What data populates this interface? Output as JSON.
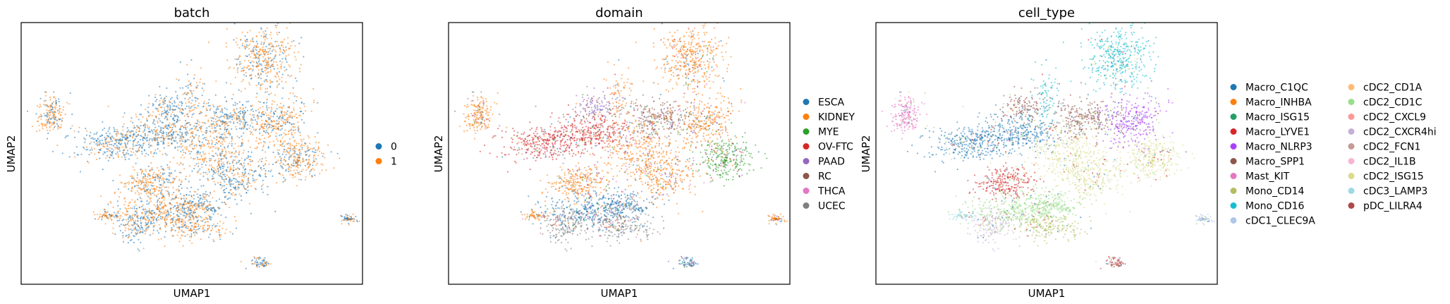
{
  "chart_data": [
    {
      "type": "scatter",
      "title": "batch",
      "xlabel": "UMAP1",
      "ylabel": "UMAP2",
      "grid": false,
      "legend": "right",
      "series": [
        {
          "name": "0",
          "color": "#1f77b4"
        },
        {
          "name": "1",
          "color": "#ff7f0e"
        }
      ]
    },
    {
      "type": "scatter",
      "title": "domain",
      "xlabel": "UMAP1",
      "ylabel": "UMAP2",
      "grid": false,
      "legend": "right",
      "series": [
        {
          "name": "ESCA",
          "color": "#1f77b4"
        },
        {
          "name": "KIDNEY",
          "color": "#ff7f0e"
        },
        {
          "name": "MYE",
          "color": "#2ca02c"
        },
        {
          "name": "OV-FTC",
          "color": "#d62728"
        },
        {
          "name": "PAAD",
          "color": "#9467bd"
        },
        {
          "name": "RC",
          "color": "#8c564b"
        },
        {
          "name": "THCA",
          "color": "#e377c2"
        },
        {
          "name": "UCEC",
          "color": "#7f7f7f"
        }
      ]
    },
    {
      "type": "scatter",
      "title": "cell_type",
      "xlabel": "UMAP1",
      "ylabel": "UMAP2",
      "grid": false,
      "legend": "right",
      "series": [
        {
          "name": "Macro_C1QC",
          "color": "#1f77b4"
        },
        {
          "name": "Macro_INHBA",
          "color": "#ff7f0e"
        },
        {
          "name": "Macro_ISG15",
          "color": "#279e68"
        },
        {
          "name": "Macro_LYVE1",
          "color": "#d62728"
        },
        {
          "name": "Macro_NLRP3",
          "color": "#aa40fc"
        },
        {
          "name": "Macro_SPP1",
          "color": "#8c564b"
        },
        {
          "name": "Mast_KIT",
          "color": "#e377c2"
        },
        {
          "name": "Mono_CD14",
          "color": "#b5bd61"
        },
        {
          "name": "Mono_CD16",
          "color": "#17becf"
        },
        {
          "name": "cDC1_CLEC9A",
          "color": "#aec7e8"
        },
        {
          "name": "cDC2_CD1A",
          "color": "#ffbb78"
        },
        {
          "name": "cDC2_CD1C",
          "color": "#98df8a"
        },
        {
          "name": "cDC2_CXCL9",
          "color": "#ff9896"
        },
        {
          "name": "cDC2_CXCR4hi",
          "color": "#c5b0d5"
        },
        {
          "name": "cDC2_FCN1",
          "color": "#c49c94"
        },
        {
          "name": "cDC2_IL1B",
          "color": "#f7b6d2"
        },
        {
          "name": "cDC2_ISG15",
          "color": "#dbdb8d"
        },
        {
          "name": "cDC3_LAMP3",
          "color": "#9edae5"
        },
        {
          "name": "pDC_LILRA4",
          "color": "#ad494a"
        }
      ]
    }
  ]
}
